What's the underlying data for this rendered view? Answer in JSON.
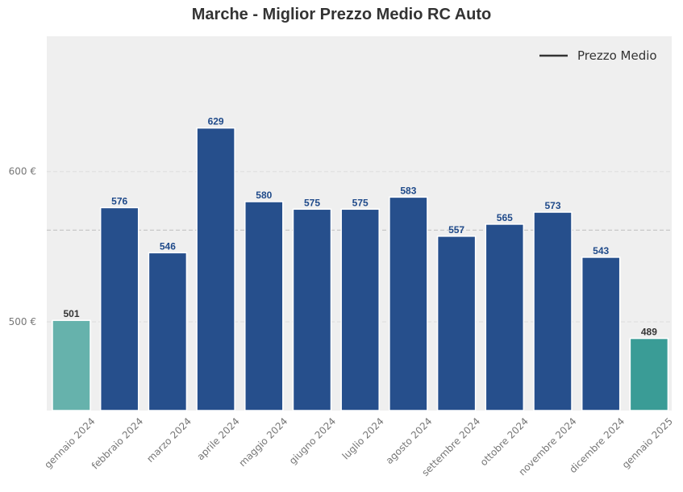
{
  "chart_data": {
    "type": "bar",
    "title": "Marche - Miglior Prezzo Medio RC Auto",
    "categories": [
      "gennaio 2024",
      "febbraio 2024",
      "marzo 2024",
      "aprile 2024",
      "maggio 2024",
      "giugno 2024",
      "luglio 2024",
      "agosto 2024",
      "settembre 2024",
      "ottobre 2024",
      "novembre 2024",
      "dicembre 2024",
      "gennaio 2025"
    ],
    "values": [
      501,
      576,
      546,
      629,
      580,
      575,
      575,
      583,
      557,
      565,
      573,
      543,
      489
    ],
    "value_labels": [
      "501",
      "576",
      "546",
      "629",
      "580",
      "575",
      "575",
      "583",
      "557",
      "565",
      "573",
      "543",
      "489"
    ],
    "bar_colors": [
      "#66b2ac",
      "#264f8c",
      "#264f8c",
      "#264f8c",
      "#264f8c",
      "#264f8c",
      "#264f8c",
      "#264f8c",
      "#264f8c",
      "#264f8c",
      "#264f8c",
      "#264f8c",
      "#3a9c96"
    ],
    "label_colors": [
      "#333333",
      "#1f4a8a",
      "#1f4a8a",
      "#1f4a8a",
      "#1f4a8a",
      "#1f4a8a",
      "#1f4a8a",
      "#1f4a8a",
      "#1f4a8a",
      "#1f4a8a",
      "#1f4a8a",
      "#1f4a8a",
      "#333333"
    ],
    "y_ticks": [
      500,
      600
    ],
    "y_tick_labels": [
      "500 €",
      "600 €"
    ],
    "ylim": [
      441,
      690
    ],
    "average_line": 561,
    "legend": {
      "label": "Prezzo Medio",
      "placement": "top-right"
    },
    "grid": true,
    "xlabel": "",
    "ylabel": ""
  },
  "colors": {
    "plot_background": "#efefef",
    "grid": "#dddddd",
    "average_line": "#c8c8c8"
  }
}
